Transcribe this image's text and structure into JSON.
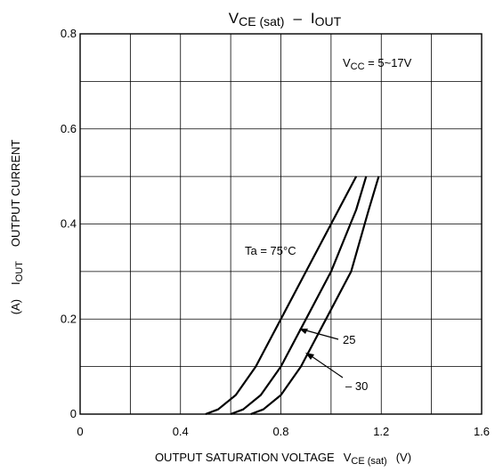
{
  "chart_data": {
    "type": "line",
    "title_main": "V",
    "title_main_sub": "CE (sat)",
    "title_dash": "–",
    "title_right": "I",
    "title_right_sub": "OUT",
    "condition": "V",
    "condition_sub": "CC",
    "condition_value": " = 5~17V",
    "xlabel": "OUTPUT SATURATION VOLTAGE",
    "xlabel_sym": "V",
    "xlabel_sub": "CE (sat)",
    "xlabel_unit": "(V)",
    "ylabel": "OUTPUT CURRENT",
    "ylabel_sym": "I",
    "ylabel_sub": "OUT",
    "ylabel_unit": "(A)",
    "xlim": [
      0,
      1.6
    ],
    "ylim": [
      0,
      0.8
    ],
    "xticks": [
      "0",
      "0.4",
      "0.8",
      "1.2",
      "1.6"
    ],
    "yticks": [
      "0",
      "0.2",
      "0.4",
      "0.6",
      "0.8"
    ],
    "grid": true,
    "series": [
      {
        "name": "Ta = 75°C",
        "x": [
          0.5,
          0.55,
          0.62,
          0.7,
          0.8,
          0.9,
          1.0,
          1.1
        ],
        "y": [
          0,
          0.01,
          0.04,
          0.1,
          0.2,
          0.3,
          0.4,
          0.5
        ]
      },
      {
        "name": "25",
        "x": [
          0.6,
          0.65,
          0.72,
          0.8,
          0.9,
          1.0,
          1.1,
          1.14
        ],
        "y": [
          0,
          0.01,
          0.04,
          0.1,
          0.2,
          0.3,
          0.43,
          0.5
        ]
      },
      {
        "name": "– 30",
        "x": [
          0.68,
          0.73,
          0.8,
          0.88,
          0.98,
          1.08,
          1.15,
          1.19
        ],
        "y": [
          0,
          0.01,
          0.04,
          0.1,
          0.2,
          0.3,
          0.43,
          0.5
        ]
      }
    ]
  }
}
